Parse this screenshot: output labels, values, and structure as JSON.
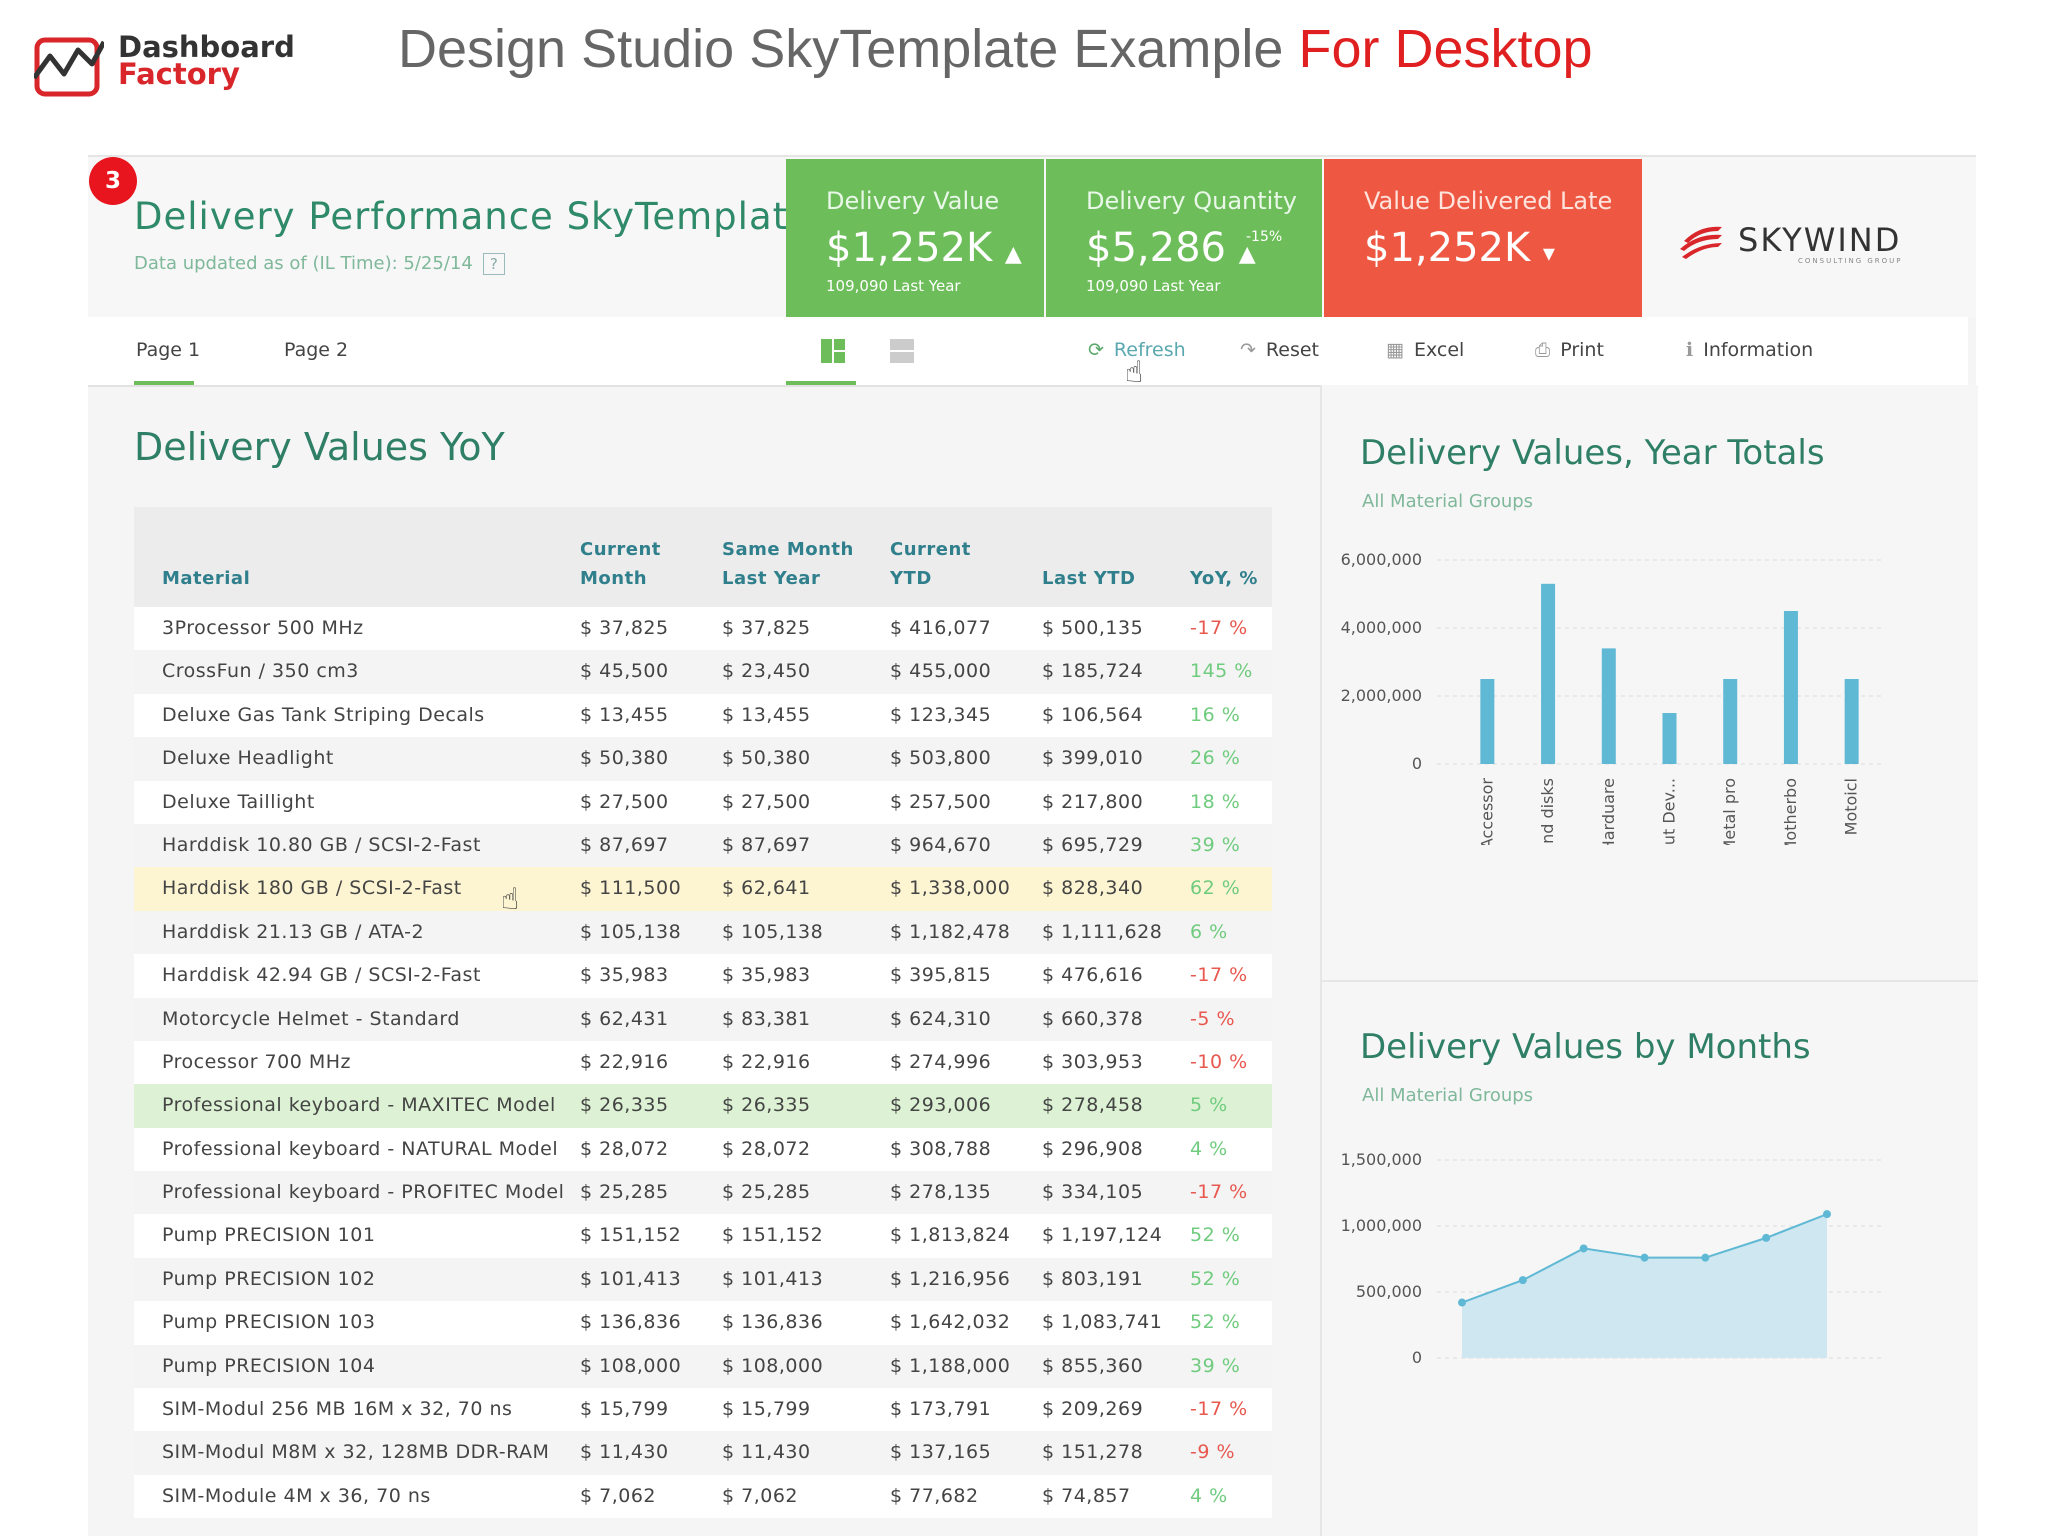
{
  "header": {
    "brand_line1": "Dashboard",
    "brand_line2": "Factory",
    "heading_main": "Design Studio SkyTemplate Example",
    "heading_accent": "For Desktop"
  },
  "dashboard": {
    "badge": "3",
    "title": "Delivery Performance SkyTemplate",
    "updated": "Data updated as of (IL Time): 5/25/14",
    "help": "?",
    "logo_text": "SKYWIND",
    "logo_sub": "CONSULTING GROUP"
  },
  "kpis": [
    {
      "label": "Delivery Value",
      "value": "$1,252K",
      "trend": "▲",
      "sub": "109,090 Last Year",
      "pct": "",
      "color": "#6dbe5a"
    },
    {
      "label": "Delivery Quantity",
      "value": "$5,286",
      "trend": "▲",
      "sub": "109,090 Last Year",
      "pct": "-15%",
      "color": "#6dbe5a"
    },
    {
      "label": "Value Delivered Late",
      "value": "$1,252K",
      "trend": "▾",
      "sub": "",
      "pct": "",
      "color": "#ee5843"
    }
  ],
  "nav": {
    "tabs": [
      "Page 1",
      "Page 2"
    ],
    "tools": [
      {
        "label": "Refresh",
        "icon": "refresh-icon"
      },
      {
        "label": "Reset",
        "icon": "reset-icon"
      },
      {
        "label": "Excel",
        "icon": "excel-icon"
      },
      {
        "label": "Print",
        "icon": "print-icon"
      },
      {
        "label": "Information",
        "icon": "info-icon"
      }
    ]
  },
  "table": {
    "title": "Delivery Values YoY",
    "headers": {
      "material": "Material",
      "cur_month_1": "Current",
      "cur_month_2": "Month",
      "same_1": "Same Month",
      "same_2": "Last Year",
      "ytd_1": "Current",
      "ytd_2": "YTD",
      "last_ytd": "Last YTD",
      "yoy": "YoY, %"
    },
    "rows": [
      [
        "3Processor  500 MHz",
        "$ 37,825",
        "$ 37,825",
        "$ 416,077",
        "$ 500,135",
        "-17 %"
      ],
      [
        "CrossFun / 350 cm3",
        "$ 45,500",
        "$ 23,450",
        "$ 455,000",
        "$ 185,724",
        "145 %"
      ],
      [
        "Deluxe Gas Tank Striping Decals",
        "$ 13,455",
        "$ 13,455",
        "$ 123,345",
        "$ 106,564",
        "16 %"
      ],
      [
        "Deluxe Headlight",
        "$ 50,380",
        "$ 50,380",
        "$ 503,800",
        "$ 399,010",
        "26 %"
      ],
      [
        "Deluxe Taillight",
        "$ 27,500",
        "$ 27,500",
        "$ 257,500",
        "$ 217,800",
        "18 %"
      ],
      [
        "Harddisk 10.80 GB  / SCSI-2-Fast",
        "$ 87,697",
        "$ 87,697",
        "$ 964,670",
        "$ 695,729",
        "39 %"
      ],
      [
        "Harddisk 180 GB / SCSI-2-Fast",
        "$ 111,500",
        "$ 62,641",
        "$ 1,338,000",
        "$ 828,340",
        "62 %"
      ],
      [
        "Harddisk 21.13 GB /  ATA-2",
        "$ 105,138",
        "$ 105,138",
        "$ 1,182,478",
        "$ 1,111,628",
        "6 %"
      ],
      [
        "Harddisk 42.94 GB / SCSI-2-Fast",
        "$ 35,983",
        "$ 35,983",
        "$ 395,815",
        "$ 476,616",
        "-17 %"
      ],
      [
        "Motorcycle Helmet - Standard",
        "$ 62,431",
        "$ 83,381",
        "$ 624,310",
        "$ 660,378",
        "-5 %"
      ],
      [
        "Processor  700  MHz",
        "$ 22,916",
        "$ 22,916",
        "$ 274,996",
        "$ 303,953",
        "-10 %"
      ],
      [
        "Professional keyboard - MAXITEC Model",
        "$ 26,335",
        "$ 26,335",
        "$ 293,006",
        "$ 278,458",
        "5 %"
      ],
      [
        "Professional keyboard - NATURAL Model",
        "$ 28,072",
        "$ 28,072",
        "$ 308,788",
        "$ 296,908",
        "4 %"
      ],
      [
        "Professional keyboard - PROFITEC Model",
        "$ 25,285",
        "$ 25,285",
        "$ 278,135",
        "$ 334,105",
        "-17 %"
      ],
      [
        "Pump PRECISION 101",
        "$ 151,152",
        "$ 151,152",
        "$ 1,813,824",
        "$ 1,197,124",
        "52 %"
      ],
      [
        "Pump PRECISION 102",
        "$ 101,413",
        "$ 101,413",
        "$ 1,216,956",
        "$ 803,191",
        "52 %"
      ],
      [
        "Pump PRECISION 103",
        "$ 136,836",
        "$ 136,836",
        "$ 1,642,032",
        "$ 1,083,741",
        "52 %"
      ],
      [
        "Pump PRECISION 104",
        "$ 108,000",
        "$ 108,000",
        "$ 1,188,000",
        "$ 855,360",
        "39 %"
      ],
      [
        "SIM-Modul 256 MB 16M x 32, 70 ns",
        "$ 15,799",
        "$ 15,799",
        "$ 173,791",
        "$ 209,269",
        "-17 %"
      ],
      [
        "SIM-Modul M8M x 32, 128MB  DDR-RAM",
        "$ 11,430",
        "$ 11,430",
        "$ 137,165",
        "$ 151,278",
        "-9 %"
      ],
      [
        "SIM-Module 4M x 36, 70 ns",
        "$ 7,062",
        "$ 7,062",
        "$ 77,682",
        "$ 74,857",
        "4 %"
      ]
    ],
    "highlight_yellow_row": 6,
    "highlight_green_row": 11
  },
  "chart_data": [
    {
      "type": "bar",
      "title": "Delivery Values, Year Totals",
      "subtitle": "All Material Groups",
      "categories": [
        "Accessor",
        "Hand disks",
        "Harduare",
        "Input Dev...",
        "Metal pro",
        "Motherbo",
        "Motoicl"
      ],
      "values": [
        2500000,
        5300000,
        3400000,
        1500000,
        2500000,
        4500000,
        2500000
      ],
      "yticks": [
        "6,000,000",
        "4,000,000",
        "2,000,000",
        "0"
      ],
      "ylim": [
        0,
        6000000
      ],
      "color": "#5fb8d4"
    },
    {
      "type": "area",
      "title": "Delivery Values by Months",
      "subtitle": "All Material Groups",
      "values": [
        420000,
        590000,
        830000,
        760000,
        760000,
        910000,
        1090000
      ],
      "yticks": [
        "1,500,000",
        "1,000,000",
        "500,000",
        "0"
      ],
      "ylim": [
        0,
        1500000
      ],
      "color": "#5fb8d4"
    }
  ]
}
